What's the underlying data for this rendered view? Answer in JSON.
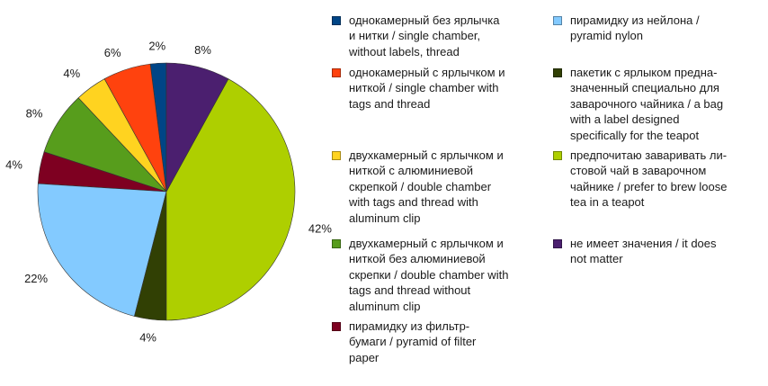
{
  "chart_data": {
    "type": "pie",
    "slices": [
      {
        "label": "однокамерный без ярлычка и нитки / single chamber, without labels, thread",
        "value": 2,
        "display": "2%",
        "color": "#004586"
      },
      {
        "label": "однокамерный с ярлычком и ниткой / single chamber with tags and thread",
        "value": 6,
        "display": "6%",
        "color": "#ff420e"
      },
      {
        "label": "двухкамерный с ярлычком и ниткой с алюминиевой скрепкой / double chamber with tags and thread with aluminum clip",
        "value": 4,
        "display": "4%",
        "color": "#ffd320"
      },
      {
        "label": "двухкамерный с ярлычком и ниткой без алюминиевой скрепки / double chamber with tags and thread without aluminum clip",
        "value": 8,
        "display": "8%",
        "color": "#579d1c"
      },
      {
        "label": "пирамидку из фильтр-бумаги / pyramid of filter paper",
        "value": 4,
        "display": "4%",
        "color": "#7e0021"
      },
      {
        "label": "пирамидку из нейлона / pyramid nylon",
        "value": 22,
        "display": "22%",
        "color": "#83caff"
      },
      {
        "label": "пакетик с ярлыком предна-значенный специально для заварочного чайника / a bag with a label designed specifically for the teapot",
        "value": 4,
        "display": "4%",
        "color": "#314004"
      },
      {
        "label": "предпочитаю заваривать ли-стовой чай в заварочном чайнике / prefer to brew loose tea in a teapot",
        "value": 42,
        "display": "42%",
        "color": "#aecf00"
      },
      {
        "label": "не имеет значения / it does not matter",
        "value": 8,
        "display": "8%",
        "color": "#4b1f6f"
      }
    ],
    "legend": {
      "placement": "right",
      "entries": [
        {
          "color": "#004586",
          "lines": [
            "однокамерный без ярлычка",
            "и нитки / single chamber,",
            "without labels, thread"
          ]
        },
        {
          "color": "#ff420e",
          "lines": [
            "однокамерный с ярлычком и",
            "ниткой / single chamber with",
            "tags and thread"
          ]
        },
        {
          "color": "#ffd320",
          "lines": [
            "двухкамерный с ярлычком и",
            "ниткой с алюминиевой",
            "скрепкой / double chamber",
            "with tags and thread with",
            "aluminum clip"
          ]
        },
        {
          "color": "#579d1c",
          "lines": [
            "двухкамерный с ярлычком и",
            "ниткой без алюминиевой",
            "скрепки / double chamber with",
            "tags and thread without",
            "aluminum clip"
          ]
        },
        {
          "color": "#7e0021",
          "lines": [
            "пирамидку из фильтр-",
            "бумаги / pyramid of filter",
            "paper"
          ]
        },
        {
          "color": "#83caff",
          "lines": [
            "пирамидку из нейлона /",
            "pyramid nylon"
          ]
        },
        {
          "color": "#314004",
          "lines": [
            "пакетик с ярлыком предна-",
            "значенный специально для",
            "заварочного чайника / a bag",
            "with a label designed",
            "specifically for the teapot"
          ]
        },
        {
          "color": "#aecf00",
          "lines": [
            "предпочитаю заваривать ли-",
            "стовой чай в заварочном",
            "чайнике / prefer to brew loose",
            "tea in a teapot"
          ]
        },
        {
          "color": "#4b1f6f",
          "lines": [
            "не имеет значения / it does",
            "not matter"
          ]
        }
      ]
    }
  }
}
